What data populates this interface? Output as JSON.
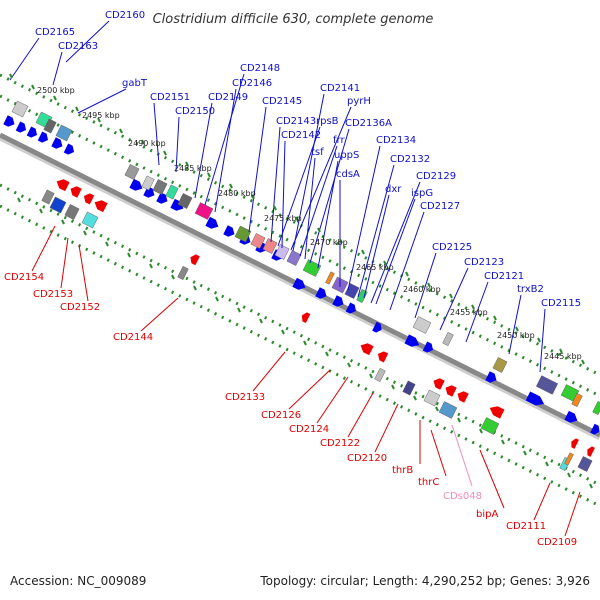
{
  "title": "Clostridium difficile 630, complete genome",
  "footer": {
    "accession": "Accession: NC_009089",
    "summary": "Topology: circular; Length: 4,290,252 bp; Genes: 3,926"
  },
  "colors": {
    "forward_label": "#1010c8",
    "reverse_label": "#dd0000",
    "pseudo_label": "#f08cbc",
    "backbone": "#888888",
    "track_dots": "#2a8a2a",
    "forward_arrow": "#0000ee",
    "reverse_arrow": "#ee0000"
  },
  "scale_ticks": [
    "2500 kbp",
    "2495 kbp",
    "2490 kbp",
    "2485 kbp",
    "2480 kbp",
    "2475 kbp",
    "2470 kbp",
    "2465 kbp",
    "2460 kbp",
    "2455 kbp",
    "2450 kbp",
    "2445 kbp"
  ],
  "forward_labels": [
    "CD2165",
    "CD2160",
    "CD2163",
    "gabT",
    "CD2151",
    "CD2150",
    "CD2149",
    "CD2148",
    "CD2146",
    "CD2145",
    "CD2143",
    "rpsB",
    "CD2142",
    "CD2141",
    "pyrH",
    "frr",
    "tsf",
    "CD2136A",
    "uppS",
    "cdsA",
    "CD2134",
    "CD2132",
    "dxr",
    "CD2129",
    "ispG",
    "CD2127",
    "CD2125",
    "CD2123",
    "CD2121",
    "trxB2",
    "CD2115"
  ],
  "reverse_labels": [
    "CD2154",
    "CD2153",
    "CD2152",
    "CD2144",
    "CD2133",
    "CD2126",
    "CD2124",
    "CD2122",
    "CD2120",
    "thrB",
    "thrC",
    "bipA",
    "CD2111",
    "CD2109"
  ],
  "pseudo_labels": [
    "CDs048"
  ]
}
